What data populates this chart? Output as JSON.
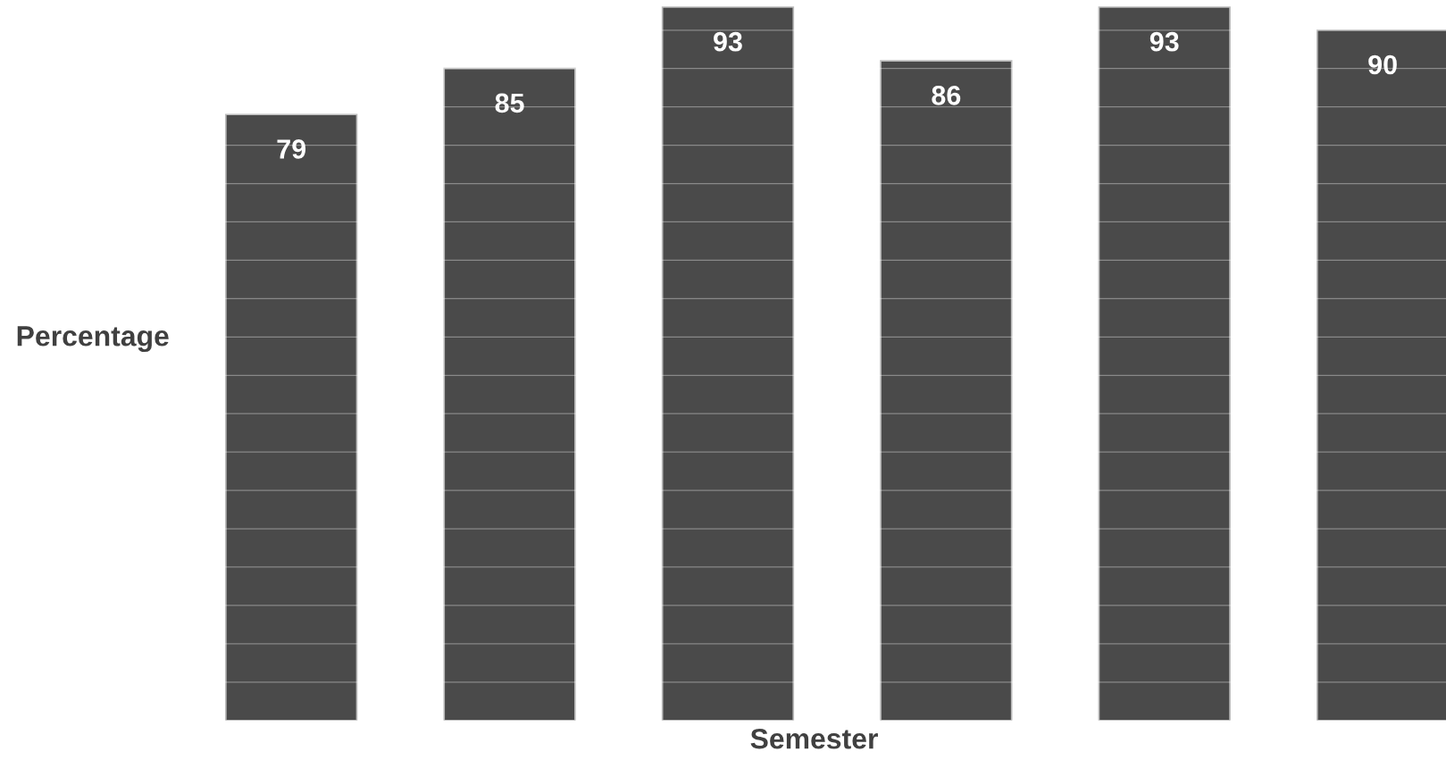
{
  "chart_data": {
    "type": "bar",
    "xlabel": "Semester",
    "ylabel": "Percentage",
    "categories": [
      null,
      null,
      null,
      null,
      null,
      null
    ],
    "values": [
      79,
      85,
      93,
      86,
      93,
      90
    ],
    "color": "#4a4a4a",
    "data_labels": true,
    "yticks": [
      {
        "value": 0,
        "label": null
      },
      {
        "value": 5,
        "label": null
      },
      {
        "value": 10,
        "label": null
      },
      {
        "value": 15,
        "label": null
      },
      {
        "value": 20,
        "label": null
      },
      {
        "value": 25,
        "label": null
      },
      {
        "value": 30,
        "label": null
      },
      {
        "value": 35,
        "label": null
      },
      {
        "value": 40,
        "label": null
      },
      {
        "value": 45,
        "label": null
      },
      {
        "value": 50,
        "label": null
      },
      {
        "value": 55,
        "label": null
      },
      {
        "value": 60,
        "label": null
      },
      {
        "value": 65,
        "label": null
      },
      {
        "value": 70,
        "label": null
      },
      {
        "value": 75,
        "label": null
      },
      {
        "value": 80,
        "label": null
      },
      {
        "value": 85,
        "label": null
      },
      {
        "value": 90,
        "label": null
      }
    ],
    "grid": "y",
    "tick_labels": false,
    "legend": false
  }
}
